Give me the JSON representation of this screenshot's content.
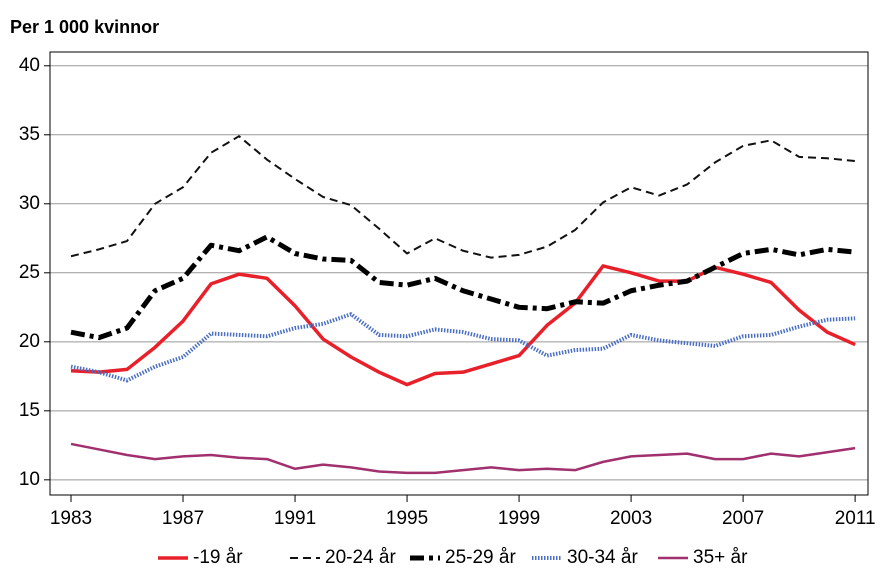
{
  "chart_data": {
    "type": "line",
    "title": "Per 1 000 kvinnor",
    "x": [
      1983,
      1984,
      1985,
      1986,
      1987,
      1988,
      1989,
      1990,
      1991,
      1992,
      1993,
      1994,
      1995,
      1996,
      1997,
      1998,
      1999,
      2000,
      2001,
      2002,
      2003,
      2004,
      2005,
      2006,
      2007,
      2008,
      2009,
      2010,
      2011
    ],
    "series": [
      {
        "name": "-19 år",
        "color": "#e8202a",
        "style": "solid",
        "linewidth": 3.5,
        "values": [
          17.9,
          17.8,
          18.0,
          19.6,
          21.5,
          24.2,
          24.9,
          24.6,
          22.6,
          20.2,
          18.9,
          17.8,
          16.9,
          17.7,
          17.8,
          18.4,
          19.0,
          21.2,
          22.8,
          25.5,
          25.0,
          24.4,
          24.4,
          25.4,
          24.9,
          24.3,
          22.3,
          20.7,
          19.8
        ]
      },
      {
        "name": "20-24 år",
        "color": "#111111",
        "style": "dashed",
        "linewidth": 2,
        "values": [
          26.2,
          26.7,
          27.3,
          30.0,
          31.2,
          33.7,
          34.9,
          33.2,
          31.8,
          30.5,
          29.9,
          28.2,
          26.4,
          27.5,
          26.6,
          26.1,
          26.3,
          26.9,
          28.1,
          30.1,
          31.2,
          30.6,
          31.4,
          33.0,
          34.2,
          34.6,
          33.4,
          33.3,
          33.1
        ]
      },
      {
        "name": "25-29 år",
        "color": "#000000",
        "style": "dashdot",
        "linewidth": 5,
        "values": [
          20.7,
          20.3,
          21.0,
          23.7,
          24.6,
          27.0,
          26.6,
          27.6,
          26.4,
          26.0,
          25.9,
          24.3,
          24.1,
          24.6,
          23.7,
          23.1,
          22.5,
          22.4,
          22.9,
          22.8,
          23.7,
          24.1,
          24.4,
          25.4,
          26.4,
          26.7,
          26.3,
          26.7,
          26.5
        ]
      },
      {
        "name": "30-34 år",
        "color": "#4a6fc4",
        "style": "dotted",
        "linewidth": 4,
        "values": [
          18.2,
          17.8,
          17.2,
          18.2,
          18.9,
          20.6,
          20.5,
          20.4,
          21.0,
          21.3,
          22.0,
          20.5,
          20.4,
          20.9,
          20.7,
          20.2,
          20.1,
          19.0,
          19.4,
          19.5,
          20.5,
          20.1,
          19.9,
          19.7,
          20.4,
          20.5,
          21.1,
          21.6,
          21.7
        ]
      },
      {
        "name": "35+ år",
        "color": "#a0306e",
        "style": "solid",
        "linewidth": 2.5,
        "values": [
          12.6,
          12.2,
          11.8,
          11.5,
          11.7,
          11.8,
          11.6,
          11.5,
          10.8,
          11.1,
          10.9,
          10.6,
          10.5,
          10.5,
          10.7,
          10.9,
          10.7,
          10.8,
          10.7,
          11.3,
          11.7,
          11.8,
          11.9,
          11.5,
          11.5,
          11.9,
          11.7,
          12.0,
          12.3
        ]
      }
    ],
    "xlim": [
      1982.25,
      2011.46
    ],
    "xticks": [
      1983,
      1987,
      1991,
      1995,
      1999,
      2003,
      2007,
      2011
    ],
    "ylim": [
      8.9,
      41
    ],
    "yticks": [
      10,
      15,
      20,
      25,
      30,
      35,
      40
    ],
    "grid": true,
    "legend": "bottom"
  }
}
